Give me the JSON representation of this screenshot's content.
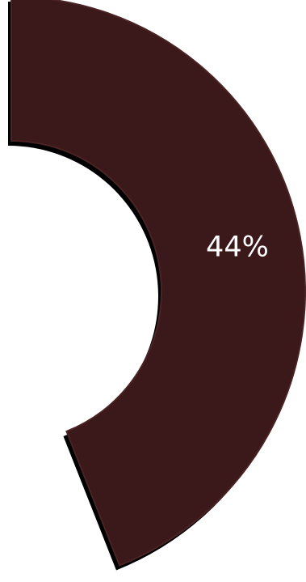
{
  "chart_data": {
    "type": "pie",
    "variant": "donut",
    "visible_slices": [
      {
        "value": 44,
        "label": "44%",
        "color": "#3b1819"
      }
    ],
    "label_color": "#ffffff"
  }
}
